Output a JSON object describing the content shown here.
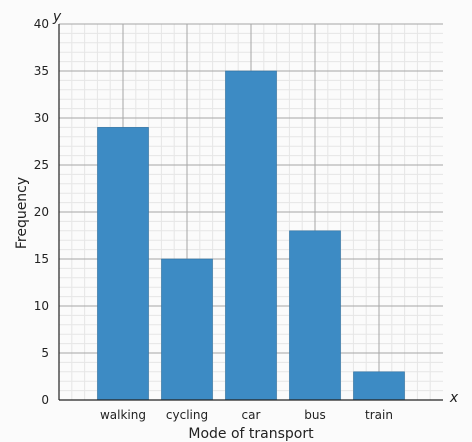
{
  "chart_data": {
    "type": "bar",
    "title": "",
    "categories": [
      "walking",
      "cycling",
      "car",
      "bus",
      "train"
    ],
    "values": [
      29,
      15,
      35,
      18,
      3
    ],
    "xlabel": "Mode of transport",
    "ylabel": "Frequency",
    "x_axis_letter": "x",
    "y_axis_letter": "y",
    "ylim": [
      0,
      40
    ],
    "y_major_step": 5,
    "y_minor_step": 1,
    "y_ticks": [
      "0",
      "5",
      "10",
      "15",
      "20",
      "25",
      "30",
      "35",
      "40"
    ],
    "grid": true,
    "legend": "none",
    "colors": {
      "bar": "#3d8bc4",
      "bar_edge": "#2e6f9f",
      "major_grid": "#a6a6a6",
      "minor_grid": "#e6e6e6",
      "axis": "#222222",
      "background": "#fbfbfb"
    }
  }
}
